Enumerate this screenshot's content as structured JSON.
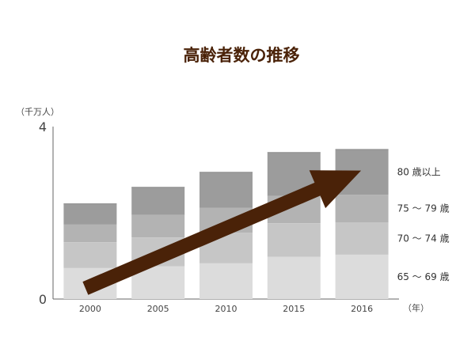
{
  "chart_data": {
    "type": "bar",
    "stacked": true,
    "title": "高齢者数の推移",
    "y_unit": "（千万人）",
    "x_unit": "（年）",
    "categories": [
      "2000",
      "2005",
      "2010",
      "2015",
      "2016"
    ],
    "ylim": [
      0,
      4
    ],
    "yticks": [
      {
        "value": 0,
        "label": "0"
      },
      {
        "value": 4,
        "label": "4"
      }
    ],
    "series": [
      {
        "name": "65 ～ 69 歳",
        "color": "#dcdcdc",
        "values": [
          0.72,
          0.76,
          0.83,
          0.98,
          1.03
        ]
      },
      {
        "name": "70 ～ 74 歳",
        "color": "#c6c6c6",
        "values": [
          0.6,
          0.67,
          0.71,
          0.78,
          0.75
        ]
      },
      {
        "name": "75 ～ 79 歳",
        "color": "#b3b3b3",
        "values": [
          0.41,
          0.52,
          0.58,
          0.63,
          0.64
        ]
      },
      {
        "name": "80 歳以上",
        "color": "#9c9c9c",
        "values": [
          0.48,
          0.64,
          0.82,
          1.01,
          1.05
        ]
      }
    ],
    "trend_arrow_color": "#4a2208",
    "grid": false
  }
}
